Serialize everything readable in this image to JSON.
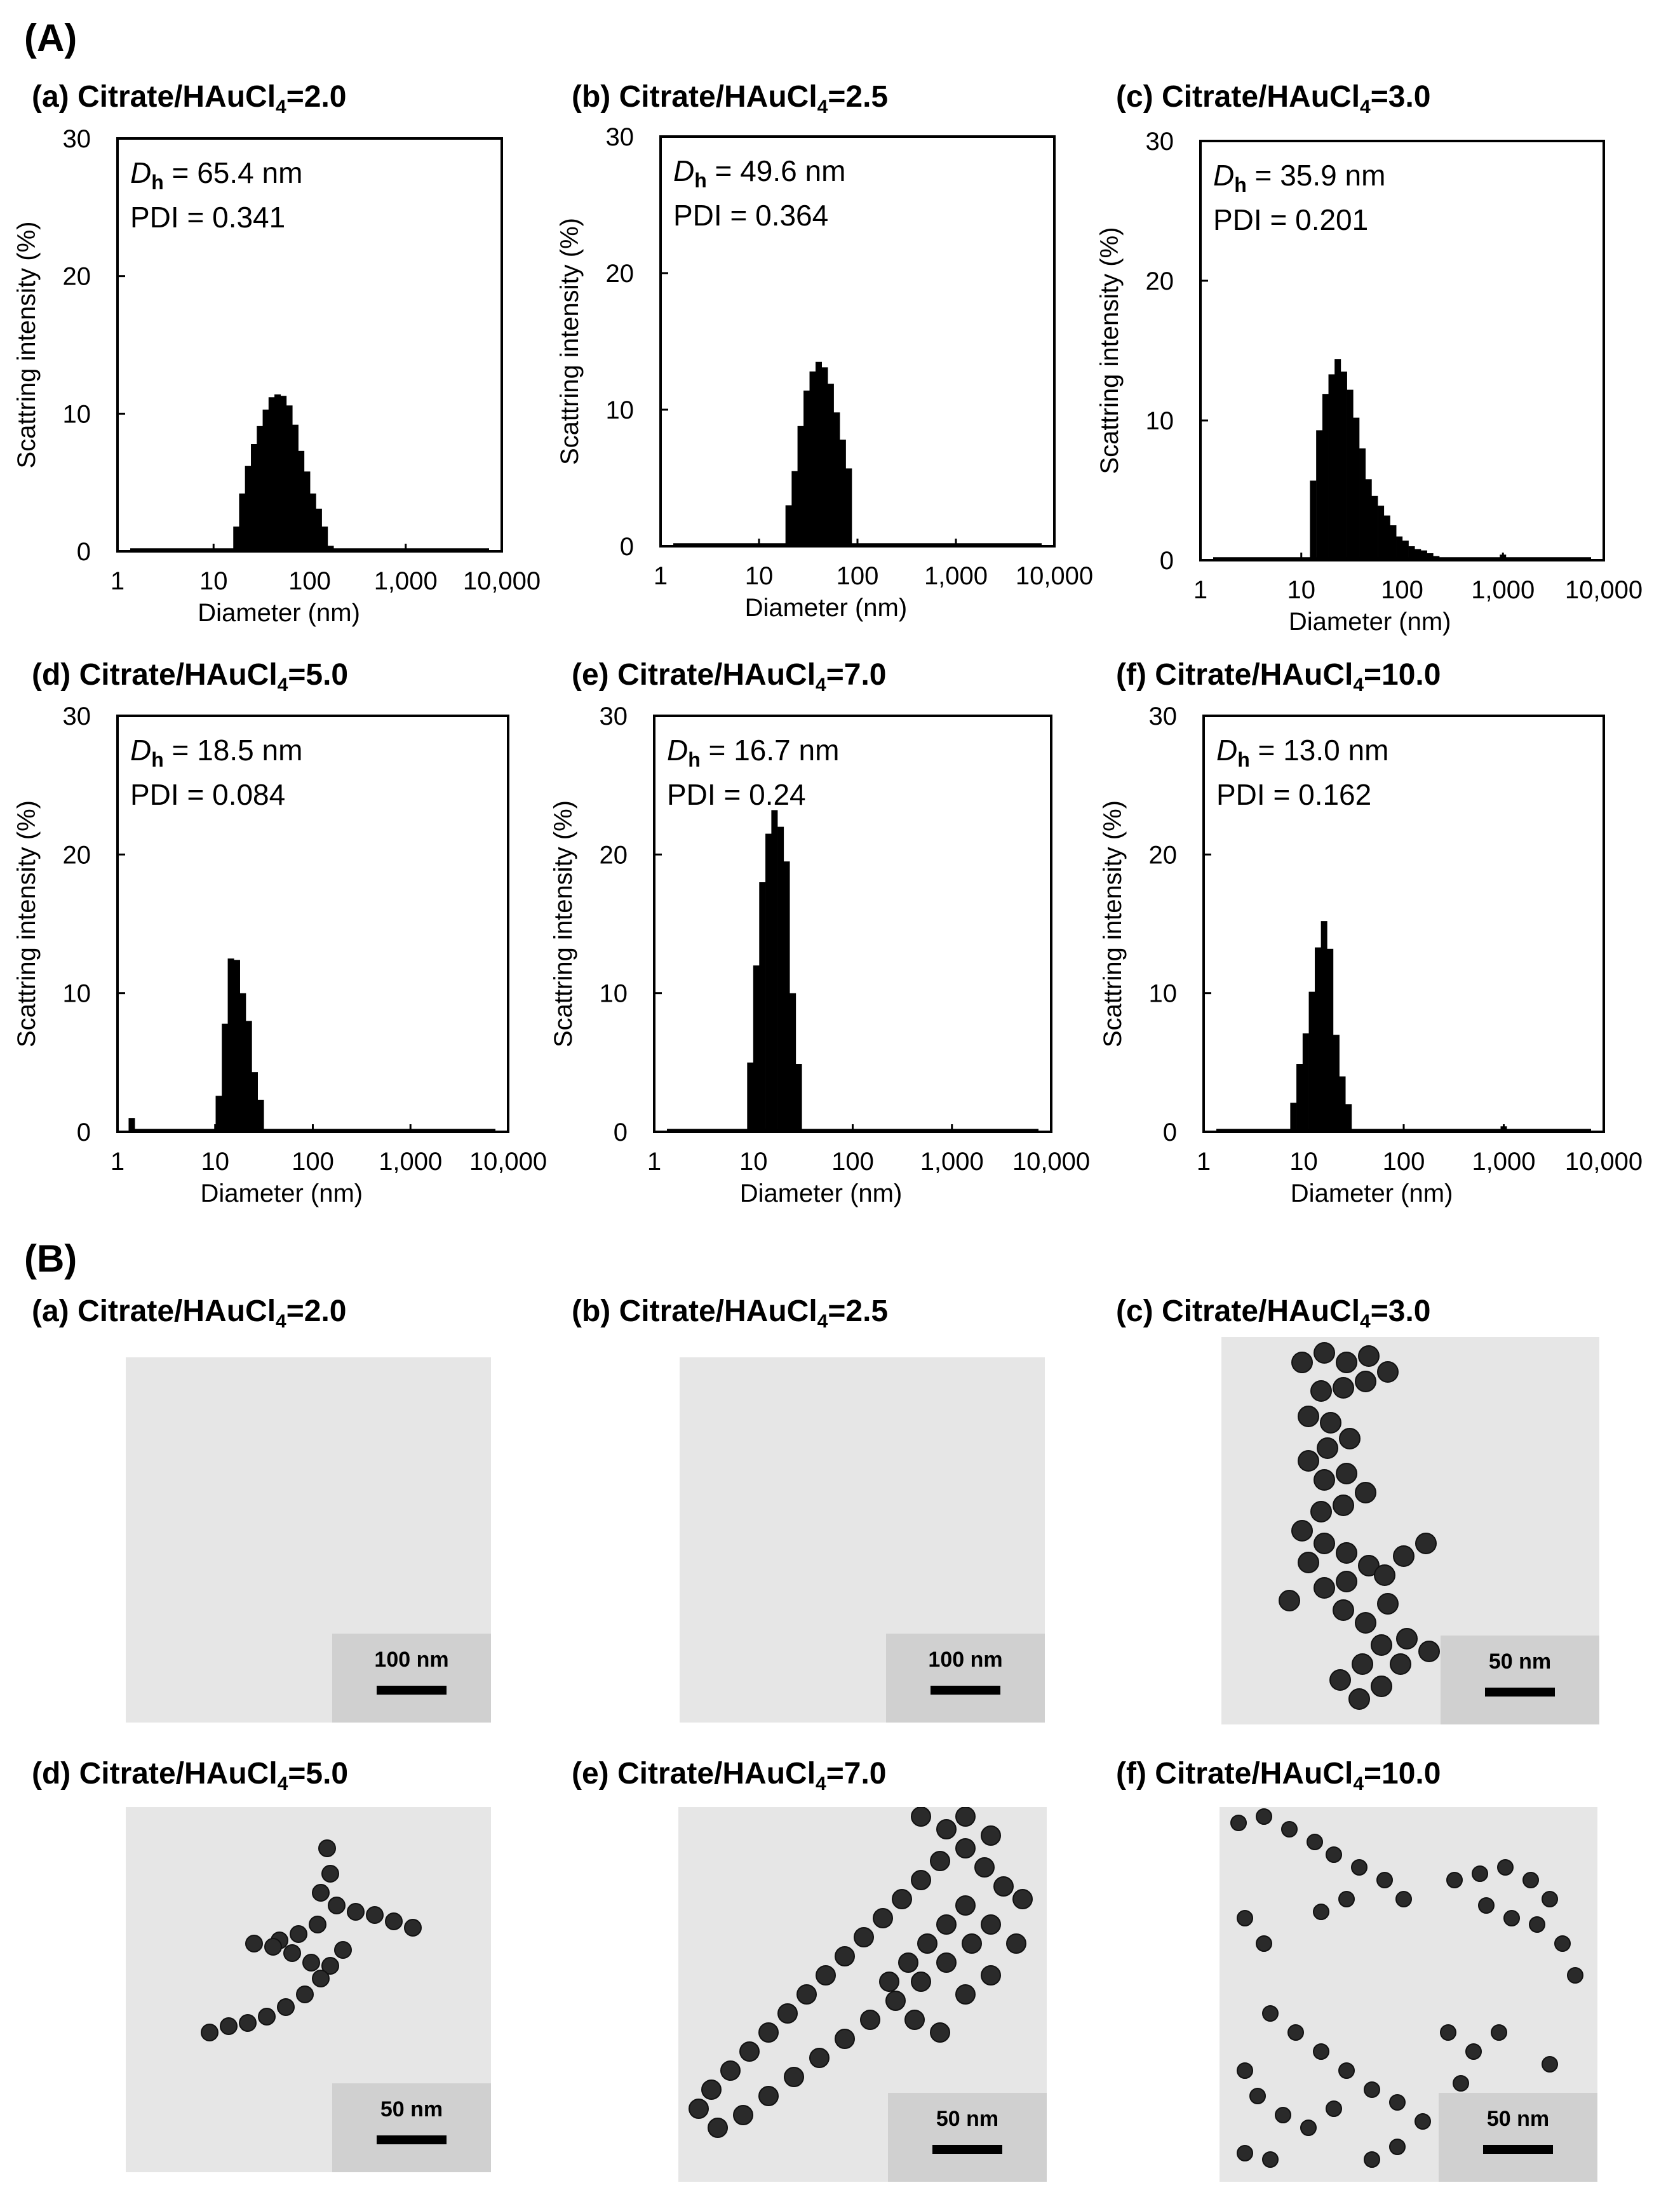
{
  "section_labels": {
    "A": "(A)",
    "B": "(B)"
  },
  "chart_data": [
    {
      "type": "bar",
      "panel": "(a)",
      "ratio": "Citrate/HAuCl",
      "ratio_sub": "4",
      "ratio_value": "=2.0",
      "dh_label": "D",
      "dh_sub": "h",
      "dh_text": " = 65.4 nm",
      "pdi_text": "PDI = 0.341",
      "xlabel": "Diameter (nm)",
      "ylabel": "Scattring intensity (%)",
      "x_scale": "log",
      "xlim": [
        1,
        10000
      ],
      "ylim": [
        0,
        30
      ],
      "x_ticks": [
        1,
        10,
        100,
        1000,
        10000
      ],
      "x_tick_labels": [
        "1",
        "10",
        "100",
        "1,000",
        "10,000"
      ],
      "y_ticks": [
        0,
        10,
        20,
        30
      ],
      "y_tick_labels": [
        "0",
        "10",
        "20",
        "30"
      ],
      "x": [
        17.3,
        19.9,
        22.9,
        26.4,
        30.4,
        35.0,
        40.3,
        46.4,
        53.3,
        61.5,
        70.9,
        81.6,
        94.0,
        108.3,
        124.5,
        143.4,
        165.3
      ],
      "values": [
        1.8,
        4.2,
        6.2,
        7.8,
        9.1,
        10.3,
        11.2,
        11.4,
        11.3,
        10.6,
        9.2,
        7.3,
        5.8,
        4.2,
        3.1,
        1.8,
        0.4
      ]
    },
    {
      "type": "bar",
      "panel": "(b)",
      "ratio": "Citrate/HAuCl",
      "ratio_sub": "4",
      "ratio_value": "=2.5",
      "dh_label": "D",
      "dh_sub": "h",
      "dh_text": " = 49.6 nm",
      "pdi_text": "PDI = 0.364",
      "xlabel": "Diameter (nm)",
      "ylabel": "Scattring intensity (%)",
      "x_scale": "log",
      "xlim": [
        1,
        10000
      ],
      "ylim": [
        0,
        30
      ],
      "x_ticks": [
        1,
        10,
        100,
        1000,
        10000
      ],
      "x_tick_labels": [
        "1",
        "10",
        "100",
        "1,000",
        "10,000"
      ],
      "y_ticks": [
        0,
        10,
        20,
        30
      ],
      "y_tick_labels": [
        "0",
        "10",
        "20",
        "30"
      ],
      "x": [
        20.0,
        23.1,
        26.5,
        30.5,
        35.1,
        40.4,
        46.5,
        53.5,
        61.6,
        70.9,
        81.6
      ],
      "values": [
        3.0,
        5.5,
        8.8,
        11.4,
        12.8,
        13.5,
        13.1,
        11.9,
        9.8,
        7.8,
        5.7
      ]
    },
    {
      "type": "bar",
      "panel": "(c)",
      "ratio": "Citrate/HAuCl",
      "ratio_sub": "4",
      "ratio_value": "=3.0",
      "dh_label": "D",
      "dh_sub": "h",
      "dh_text": " = 35.9 nm",
      "pdi_text": "PDI = 0.201",
      "xlabel": "Diameter (nm)",
      "ylabel": "Scattring intensity (%)",
      "x_scale": "log",
      "xlim": [
        1,
        10000
      ],
      "ylim": [
        0,
        30
      ],
      "x_ticks": [
        1,
        10,
        100,
        1000,
        10000
      ],
      "x_tick_labels": [
        "1",
        "10",
        "100",
        "1,000",
        "10,000"
      ],
      "y_ticks": [
        0,
        10,
        20,
        30
      ],
      "y_tick_labels": [
        "0",
        "10",
        "20",
        "30"
      ],
      "x": [
        13.1,
        15.1,
        17.4,
        20.0,
        23.0,
        26.5,
        30.5,
        35.1,
        40.4,
        46.5,
        53.5,
        61.6,
        70.9,
        81.6,
        93.9,
        108.1,
        124.4,
        143.2,
        164.8,
        189.7,
        218.3,
        1000
      ],
      "values": [
        5.7,
        9.3,
        11.9,
        13.3,
        14.4,
        13.5,
        12.2,
        10.2,
        8.0,
        5.8,
        4.6,
        3.9,
        3.2,
        2.5,
        1.7,
        1.4,
        1.0,
        0.8,
        0.7,
        0.5,
        0.3,
        0.4
      ]
    },
    {
      "type": "bar",
      "panel": "(d)",
      "ratio": "Citrate/HAuCl",
      "ratio_sub": "4",
      "ratio_value": "=5.0",
      "dh_label": "D",
      "dh_sub": "h",
      "dh_text": " = 18.5 nm",
      "pdi_text": "PDI = 0.084",
      "xlabel": "Diameter (nm)",
      "ylabel": "Scattring intensity (%)",
      "x_scale": "log",
      "xlim": [
        1,
        10000
      ],
      "ylim": [
        0,
        30
      ],
      "x_ticks": [
        1,
        10,
        100,
        1000,
        10000
      ],
      "x_tick_labels": [
        "1",
        "10",
        "100",
        "1,000",
        "10,000"
      ],
      "y_ticks": [
        0,
        10,
        20,
        30
      ],
      "y_tick_labels": [
        "0",
        "10",
        "20",
        "30"
      ],
      "x": [
        1.4,
        10.9,
        12.6,
        14.5,
        16.7,
        19.2,
        22.1,
        25.4,
        29.3
      ],
      "values": [
        1.0,
        2.6,
        7.8,
        12.5,
        12.4,
        10.0,
        8.0,
        4.3,
        2.3
      ]
    },
    {
      "type": "bar",
      "panel": "(e)",
      "ratio": "Citrate/HAuCl",
      "ratio_sub": "4",
      "ratio_value": "=7.0",
      "dh_label": "D",
      "dh_sub": "h",
      "dh_text": " = 16.7 nm",
      "pdi_text": "PDI = 0.24",
      "xlabel": "Diameter (nm)",
      "ylabel": "Scattring intensity (%)",
      "x_scale": "log",
      "xlim": [
        1,
        10000
      ],
      "ylim": [
        0,
        30
      ],
      "x_ticks": [
        1,
        10,
        100,
        1000,
        10000
      ],
      "x_tick_labels": [
        "1",
        "10",
        "100",
        "1,000",
        "10,000"
      ],
      "y_ticks": [
        0,
        10,
        20,
        30
      ],
      "y_tick_labels": [
        "0",
        "10",
        "20",
        "30"
      ],
      "x": [
        9.3,
        10.7,
        12.3,
        14.2,
        16.3,
        18.8,
        21.6,
        24.9,
        28.6
      ],
      "values": [
        5.0,
        12.0,
        18.0,
        21.5,
        23.2,
        22.0,
        19.5,
        10.0,
        4.9
      ]
    },
    {
      "type": "bar",
      "panel": "(f)",
      "ratio": "Citrate/HAuCl",
      "ratio_sub": "4",
      "ratio_value": "=10.0",
      "dh_label": "D",
      "dh_sub": "h",
      "dh_text": " = 13.0 nm",
      "pdi_text": "PDI = 0.162",
      "xlabel": "Diameter (nm)",
      "ylabel": "Scattring intensity (%)",
      "x_scale": "log",
      "xlim": [
        1,
        10000
      ],
      "ylim": [
        0,
        30
      ],
      "x_ticks": [
        1,
        10,
        100,
        1000,
        10000
      ],
      "x_tick_labels": [
        "1",
        "10",
        "100",
        "1,000",
        "10,000"
      ],
      "y_ticks": [
        0,
        10,
        20,
        30
      ],
      "y_tick_labels": [
        "0",
        "10",
        "20",
        "30"
      ],
      "x": [
        7.9,
        9.1,
        10.5,
        12.1,
        13.9,
        16.0,
        18.4,
        21.2,
        24.4,
        28.1,
        1000
      ],
      "values": [
        2.1,
        4.9,
        7.1,
        10.1,
        13.3,
        15.2,
        13.2,
        7.0,
        4.0,
        2.0,
        0.4
      ]
    }
  ],
  "tem_panels": [
    {
      "panel": "(a)",
      "ratio": "Citrate/HAuCl",
      "ratio_sub": "4",
      "ratio_value": "=2.0",
      "scale_label": "100 nm",
      "image": "TEM micrograph"
    },
    {
      "panel": "(b)",
      "ratio": "Citrate/HAuCl",
      "ratio_sub": "4",
      "ratio_value": "=2.5",
      "scale_label": "100 nm",
      "image": "TEM micrograph"
    },
    {
      "panel": "(c)",
      "ratio": "Citrate/HAuCl",
      "ratio_sub": "4",
      "ratio_value": "=3.0",
      "scale_label": "50 nm",
      "image": "TEM micrograph"
    },
    {
      "panel": "(d)",
      "ratio": "Citrate/HAuCl",
      "ratio_sub": "4",
      "ratio_value": "=5.0",
      "scale_label": "50 nm",
      "image": "TEM micrograph"
    },
    {
      "panel": "(e)",
      "ratio": "Citrate/HAuCl",
      "ratio_sub": "4",
      "ratio_value": "=7.0",
      "scale_label": "50 nm",
      "image": "TEM micrograph"
    },
    {
      "panel": "(f)",
      "ratio": "Citrate/HAuCl",
      "ratio_sub": "4",
      "ratio_value": "=10.0",
      "scale_label": "50 nm",
      "image": "TEM micrograph"
    }
  ],
  "colors": {
    "bar": "#000000",
    "axis": "#000000",
    "tem_background": "#e6e6e6",
    "tem_particle": "#2a2a2a",
    "scale_box": "#d0d0d0"
  }
}
